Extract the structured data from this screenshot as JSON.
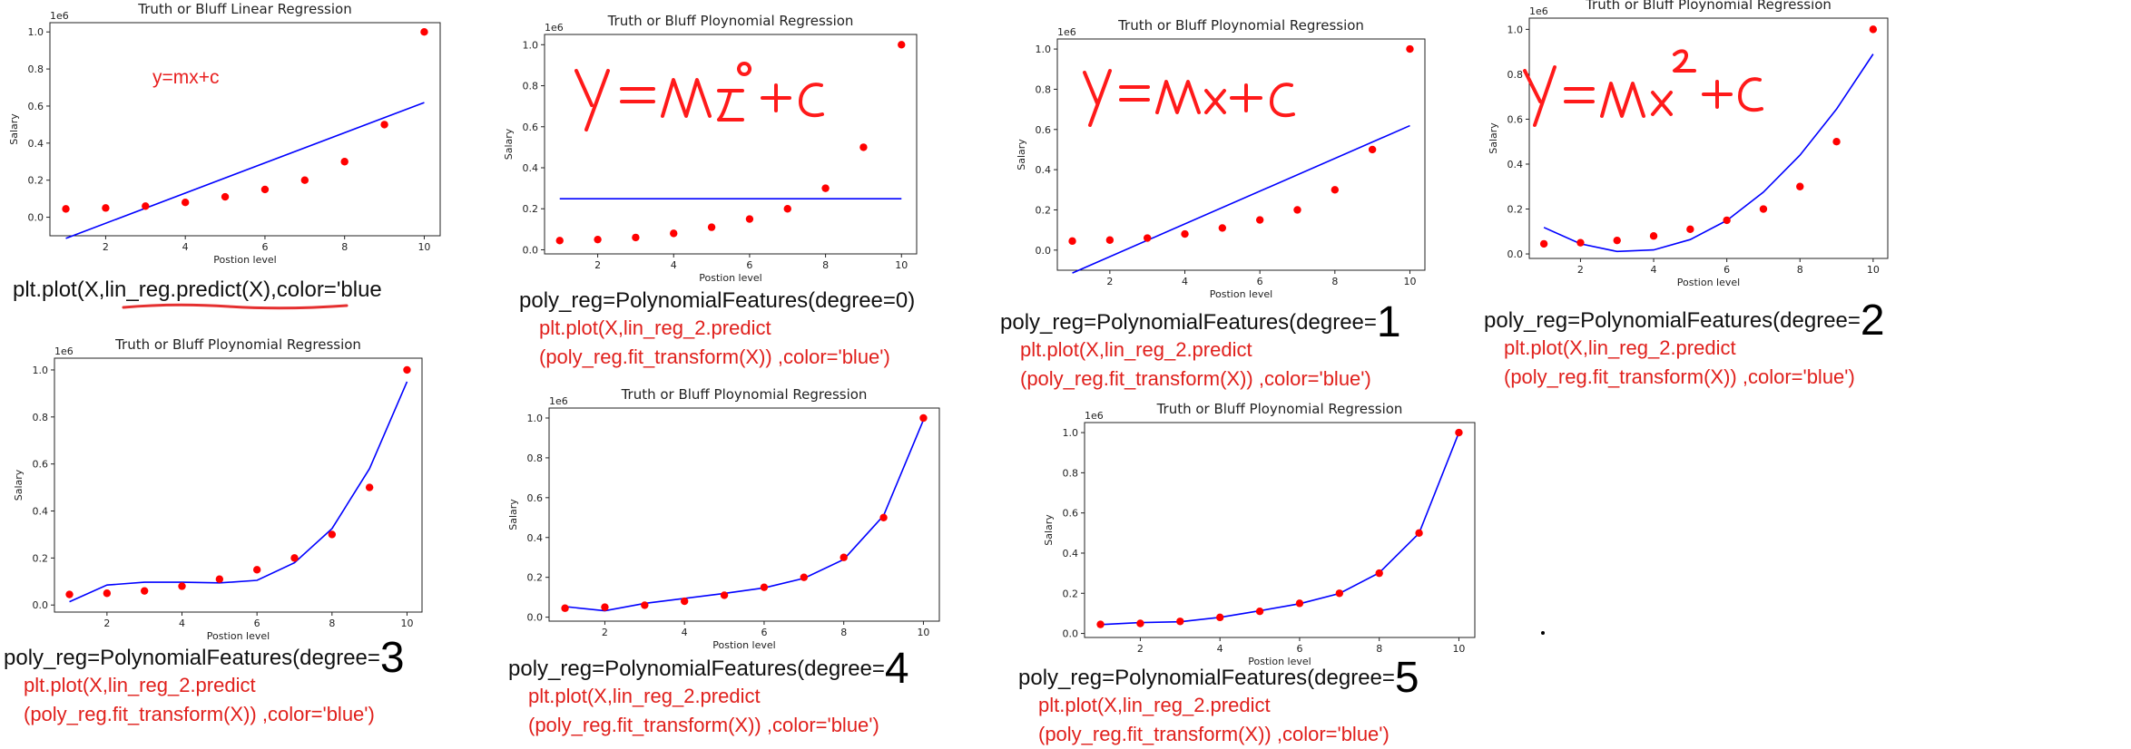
{
  "chart_data": [
    {
      "id": "p1",
      "type": "scatter+line",
      "title": "Truth or Bluff Linear Regression",
      "xlabel": "Postion level",
      "ylabel": "Salary",
      "scale_label": "1e6",
      "xticks": [
        2,
        4,
        6,
        8,
        10
      ],
      "yticks": [
        0.0,
        0.2,
        0.4,
        0.6,
        0.8,
        1.0
      ],
      "xlim": [
        0.6,
        10.4
      ],
      "ylim": [
        -0.1,
        1.05
      ],
      "points": {
        "x": [
          1,
          2,
          3,
          4,
          5,
          6,
          7,
          8,
          9,
          10
        ],
        "y": [
          0.045,
          0.05,
          0.06,
          0.08,
          0.11,
          0.15,
          0.2,
          0.3,
          0.5,
          1.0
        ],
        "color": "#ff0000"
      },
      "line": {
        "x": [
          1,
          10
        ],
        "y": [
          -0.114,
          0.619
        ],
        "color": "#0000ff"
      },
      "annotation": "y=mx+c",
      "caption": {
        "main": "plt.plot(X,lin_reg.predict(X),color='blue",
        "red": []
      }
    },
    {
      "id": "p2",
      "type": "scatter+line",
      "title": "Truth or Bluff Ploynomial Regression",
      "xlabel": "Postion level",
      "ylabel": "Salary",
      "scale_label": "1e6",
      "xticks": [
        2,
        4,
        6,
        8,
        10
      ],
      "yticks": [
        0.0,
        0.2,
        0.4,
        0.6,
        0.8,
        1.0
      ],
      "xlim": [
        0.6,
        10.4
      ],
      "ylim": [
        -0.02,
        1.05
      ],
      "points": {
        "x": [
          1,
          2,
          3,
          4,
          5,
          6,
          7,
          8,
          9,
          10
        ],
        "y": [
          0.045,
          0.05,
          0.06,
          0.08,
          0.11,
          0.15,
          0.2,
          0.3,
          0.5,
          1.0
        ],
        "color": "#ff0000"
      },
      "line": {
        "x": [
          1,
          10
        ],
        "y": [
          0.249,
          0.249
        ],
        "color": "#0000ff"
      },
      "handwritten": "y=mx⁰+c",
      "caption": {
        "main": "poly_reg=PolynomialFeatures(degree=0)",
        "degree": "",
        "red": [
          "plt.plot(X,lin_reg_2.predict",
          "(poly_reg.fit_transform(X)) ,color='blue')"
        ]
      }
    },
    {
      "id": "p3",
      "type": "scatter+line",
      "title": "Truth or Bluff Ploynomial Regression",
      "xlabel": "Postion level",
      "ylabel": "Salary",
      "scale_label": "1e6",
      "xticks": [
        2,
        4,
        6,
        8,
        10
      ],
      "yticks": [
        0.0,
        0.2,
        0.4,
        0.6,
        0.8,
        1.0
      ],
      "xlim": [
        0.6,
        10.4
      ],
      "ylim": [
        -0.1,
        1.05
      ],
      "points": {
        "x": [
          1,
          2,
          3,
          4,
          5,
          6,
          7,
          8,
          9,
          10
        ],
        "y": [
          0.045,
          0.05,
          0.06,
          0.08,
          0.11,
          0.15,
          0.2,
          0.3,
          0.5,
          1.0
        ],
        "color": "#ff0000"
      },
      "line": {
        "x": [
          1,
          10
        ],
        "y": [
          -0.114,
          0.619
        ],
        "color": "#0000ff"
      },
      "handwritten": "y=mx+c",
      "caption": {
        "main": "poly_reg=PolynomialFeatures(degree=",
        "degree": "1",
        "red": [
          "plt.plot(X,lin_reg_2.predict",
          "(poly_reg.fit_transform(X)) ,color='blue')"
        ]
      }
    },
    {
      "id": "p4",
      "type": "scatter+line",
      "title": "Truth or Bluff Ploynomial Regression",
      "xlabel": "Postion level",
      "ylabel": "Salary",
      "scale_label": "1e6",
      "xticks": [
        2,
        4,
        6,
        8,
        10
      ],
      "yticks": [
        0.0,
        0.2,
        0.4,
        0.6,
        0.8,
        1.0
      ],
      "xlim": [
        0.6,
        10.4
      ],
      "ylim": [
        -0.02,
        1.05
      ],
      "points": {
        "x": [
          1,
          2,
          3,
          4,
          5,
          6,
          7,
          8,
          9,
          10
        ],
        "y": [
          0.045,
          0.05,
          0.06,
          0.08,
          0.11,
          0.15,
          0.2,
          0.3,
          0.5,
          1.0
        ],
        "color": "#ff0000"
      },
      "line": {
        "x": [
          1,
          2,
          3,
          4,
          5,
          6,
          7,
          8,
          9,
          10
        ],
        "y": [
          0.118,
          0.045,
          0.011,
          0.018,
          0.064,
          0.149,
          0.275,
          0.44,
          0.645,
          0.89
        ],
        "color": "#0000ff"
      },
      "handwritten": "y=mx²+c",
      "caption": {
        "main": "poly_reg=PolynomialFeatures(degree=",
        "degree": "2",
        "red": [
          "plt.plot(X,lin_reg_2.predict",
          "(poly_reg.fit_transform(X)) ,color='blue')"
        ]
      }
    },
    {
      "id": "p5",
      "type": "scatter+line",
      "title": "Truth or Bluff Ploynomial Regression",
      "xlabel": "Postion level",
      "ylabel": "Salary",
      "scale_label": "1e6",
      "xticks": [
        2,
        4,
        6,
        8,
        10
      ],
      "yticks": [
        0.0,
        0.2,
        0.4,
        0.6,
        0.8,
        1.0
      ],
      "xlim": [
        0.6,
        10.4
      ],
      "ylim": [
        -0.03,
        1.05
      ],
      "points": {
        "x": [
          1,
          2,
          3,
          4,
          5,
          6,
          7,
          8,
          9,
          10
        ],
        "y": [
          0.045,
          0.05,
          0.06,
          0.08,
          0.11,
          0.15,
          0.2,
          0.3,
          0.5,
          1.0
        ],
        "color": "#ff0000"
      },
      "line": {
        "x": [
          1,
          2,
          3,
          4,
          5,
          6,
          7,
          8,
          9,
          10
        ],
        "y": [
          0.014,
          0.085,
          0.097,
          0.097,
          0.094,
          0.105,
          0.18,
          0.325,
          0.58,
          0.95
        ],
        "color": "#0000ff"
      },
      "caption": {
        "main": "poly_reg=PolynomialFeatures(degree=",
        "degree": "3",
        "red": [
          "plt.plot(X,lin_reg_2.predict",
          "(poly_reg.fit_transform(X)) ,color='blue')"
        ]
      }
    },
    {
      "id": "p6",
      "type": "scatter+line",
      "title": "Truth or Bluff Ploynomial Regression",
      "xlabel": "Postion level",
      "ylabel": "Salary",
      "scale_label": "1e6",
      "xticks": [
        2,
        4,
        6,
        8,
        10
      ],
      "yticks": [
        0.0,
        0.2,
        0.4,
        0.6,
        0.8,
        1.0
      ],
      "xlim": [
        0.6,
        10.4
      ],
      "ylim": [
        -0.02,
        1.05
      ],
      "points": {
        "x": [
          1,
          2,
          3,
          4,
          5,
          6,
          7,
          8,
          9,
          10
        ],
        "y": [
          0.045,
          0.05,
          0.06,
          0.08,
          0.11,
          0.15,
          0.2,
          0.3,
          0.5,
          1.0
        ],
        "color": "#ff0000"
      },
      "line": {
        "x": [
          1,
          2,
          3,
          4,
          5,
          6,
          7,
          8,
          9,
          10
        ],
        "y": [
          0.053,
          0.032,
          0.069,
          0.094,
          0.119,
          0.147,
          0.195,
          0.29,
          0.51,
          0.99
        ],
        "color": "#0000ff"
      },
      "caption": {
        "main": "poly_reg=PolynomialFeatures(degree=",
        "degree": "4",
        "red": [
          "plt.plot(X,lin_reg_2.predict",
          "(poly_reg.fit_transform(X)) ,color='blue')"
        ]
      }
    },
    {
      "id": "p7",
      "type": "scatter+line",
      "title": "Truth or Bluff Ploynomial Regression",
      "xlabel": "Postion level",
      "ylabel": "Salary",
      "scale_label": "1e6",
      "xticks": [
        2,
        4,
        6,
        8,
        10
      ],
      "yticks": [
        0.0,
        0.2,
        0.4,
        0.6,
        0.8,
        1.0
      ],
      "xlim": [
        0.6,
        10.4
      ],
      "ylim": [
        -0.02,
        1.05
      ],
      "points": {
        "x": [
          1,
          2,
          3,
          4,
          5,
          6,
          7,
          8,
          9,
          10
        ],
        "y": [
          0.045,
          0.05,
          0.06,
          0.08,
          0.11,
          0.15,
          0.2,
          0.3,
          0.5,
          1.0
        ],
        "color": "#ff0000"
      },
      "line": {
        "x": [
          1,
          2,
          3,
          4,
          5,
          6,
          7,
          8,
          9,
          10
        ],
        "y": [
          0.044,
          0.054,
          0.058,
          0.08,
          0.113,
          0.148,
          0.199,
          0.302,
          0.499,
          1.0
        ],
        "color": "#0000ff"
      },
      "caption": {
        "main": "poly_reg=PolynomialFeatures(degree=",
        "degree": "5",
        "red": [
          "plt.plot(X,lin_reg_2.predict",
          "(poly_reg.fit_transform(X)) ,color='blue')"
        ]
      }
    }
  ]
}
